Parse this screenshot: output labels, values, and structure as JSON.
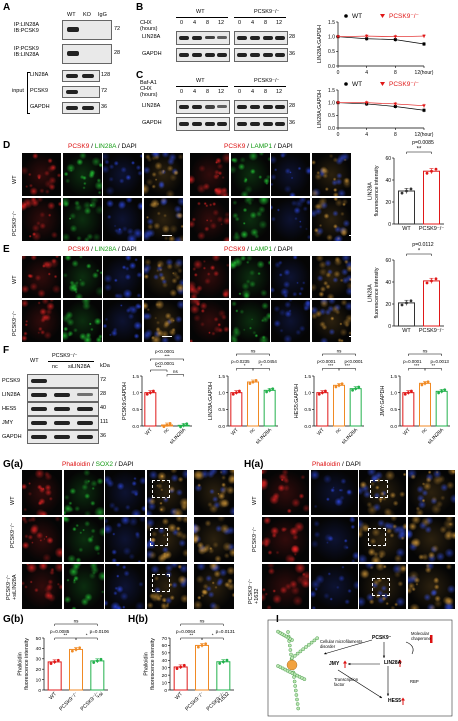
{
  "panels": {
    "A": "A",
    "B": "B",
    "C": "C",
    "D": "D",
    "E": "E",
    "F": "F",
    "Ga": "G(a)",
    "Ha": "H(a)",
    "Gb": "G(b)",
    "Hb": "H(b)",
    "I": "I"
  },
  "A": {
    "cols": [
      "WT",
      "KO",
      "IgG"
    ],
    "rows": [
      "IP:LIN28A\nIB:PCSK9",
      "IP:PCSK9\nIB:LIN28A",
      "LIN28A",
      "PCSK9",
      "GAPDH"
    ],
    "input_label": "input",
    "kda": [
      "72",
      "28",
      "128",
      "72",
      "36"
    ]
  },
  "B": {
    "cond_label": "CHX\n(hours)",
    "wt": "WT",
    "ko": "PCSK9⁻/⁻",
    "hours": [
      "0",
      "4",
      "8",
      "12",
      "0",
      "4",
      "8",
      "12"
    ],
    "rows": [
      "LIN28A",
      "GAPDH"
    ],
    "kda": [
      "28",
      "36"
    ]
  },
  "C": {
    "cond_label": "Baf-A1\nCHX\n(hours)",
    "wt": "WT",
    "ko": "PCSK9⁻/⁻",
    "hours": [
      "0",
      "4",
      "8",
      "12",
      "0",
      "4",
      "8",
      "12"
    ],
    "rows": [
      "LIN28A",
      "GAPDH"
    ],
    "kda": [
      "28",
      "36"
    ]
  },
  "D": {
    "left_title": {
      "a": "PCSK9",
      "b": " / ",
      "c": "LIN28A",
      "d": " / DAPI"
    },
    "right_title": {
      "a": "PCSK9",
      "b": " / ",
      "c": "LAMP1",
      "d": " / DAPI"
    },
    "rows": [
      "WT",
      "PCSK9⁻/⁻"
    ],
    "pval": "p=0.0085"
  },
  "E": {
    "left_title": {
      "a": "PCSK9",
      "b": " / ",
      "c": "LIN28A",
      "d": " / DAPI"
    },
    "right_title": {
      "a": "PCSK9",
      "b": " / ",
      "c": "LAMP1",
      "d": " / DAPI"
    },
    "rows": [
      "WT",
      "PCSK9⁻/⁻"
    ],
    "pval": "p=0.0112"
  },
  "F": {
    "header_ko": "PCSK9⁻/⁻",
    "header_cols": [
      "WT",
      "nc",
      "siLIN28A"
    ],
    "rows": [
      "PCSK9",
      "LIN28A",
      "HES5",
      "JMY",
      "GAPDH"
    ],
    "kda_title": "kDa",
    "kda": [
      "72",
      "28",
      "40",
      "111",
      "36"
    ]
  },
  "Ga": {
    "title": {
      "a": "Phalloidin",
      "b": " / ",
      "c": "SOX2",
      "d": " / DAPI"
    },
    "rows": [
      "WT",
      "PCSK9⁻/⁻",
      "PCSK9⁻/⁻\n+siLIN28A"
    ]
  },
  "Ha": {
    "title": {
      "a": "Phalloidin",
      "b": " / DAPI"
    },
    "rows": [
      "WT",
      "PCSK9⁻/⁻",
      "PCSK9⁻/⁻\n+1632"
    ]
  },
  "I": {
    "labels": {
      "disorder": "Cellular microfilaments\ndisorder",
      "pcsk9": "PCSK9⁻",
      "chaperone": "Molecular\nchaperone",
      "lin28a": "LIN28A",
      "jmy": "JMY",
      "rbp": "RBP",
      "tf": "Transcription\nfactor",
      "hes5": "HES5"
    }
  },
  "chart_data": [
    {
      "id": "B-line",
      "type": "line",
      "ylabel": "LIN28A:GAPDH",
      "xlabel": "(hour)",
      "x": [
        0,
        4,
        8,
        12
      ],
      "xticks": [
        "0",
        "4",
        "8",
        "12(hour)"
      ],
      "ylim": [
        0.0,
        1.5
      ],
      "yticks": [
        "0.0",
        "0.5",
        "1.0",
        "1.5"
      ],
      "legend": [
        "WT",
        "PCSK9⁻/⁻"
      ],
      "series": [
        {
          "name": "WT",
          "values": [
            1.0,
            0.93,
            0.9,
            0.75
          ],
          "color": "#000000"
        },
        {
          "name": "PCSK9⁻/⁻",
          "values": [
            1.0,
            1.02,
            1.0,
            1.02
          ],
          "color": "#e01818"
        }
      ]
    },
    {
      "id": "C-line",
      "type": "line",
      "ylabel": "LIN28A:GAPDH",
      "xlabel": "(hour)",
      "x": [
        0,
        4,
        8,
        12
      ],
      "xticks": [
        "0",
        "4",
        "8",
        "12(hour)"
      ],
      "ylim": [
        0.0,
        1.5
      ],
      "yticks": [
        "0.0",
        "0.5",
        "1.0",
        "1.5"
      ],
      "legend": [
        "WT",
        "PCSK9⁻/⁻"
      ],
      "series": [
        {
          "name": "WT",
          "values": [
            1.0,
            0.95,
            0.85,
            0.7
          ],
          "color": "#000000"
        },
        {
          "name": "PCSK9⁻/⁻",
          "values": [
            1.0,
            1.0,
            0.95,
            0.88
          ],
          "color": "#e01818"
        }
      ]
    },
    {
      "id": "D-bar",
      "type": "bar",
      "ylabel": "LIN28A\nfluorescence intensity",
      "categories": [
        "WT",
        "PCSK9⁻/⁻"
      ],
      "values": [
        30,
        48
      ],
      "ylim": [
        0,
        60
      ],
      "yticks": [
        "0",
        "20",
        "40",
        "60"
      ],
      "sig": "p=0.0085",
      "stars": "**"
    },
    {
      "id": "E-bar",
      "type": "bar",
      "ylabel": "LIN28A\nfluorescence intensity",
      "categories": [
        "WT",
        "PCSK9⁻/⁻"
      ],
      "values": [
        21,
        41
      ],
      "ylim": [
        0,
        60
      ],
      "yticks": [
        "0",
        "20",
        "40",
        "60"
      ],
      "sig": "p=0.0112",
      "stars": "*"
    },
    {
      "id": "F1",
      "type": "bar",
      "ylabel": "PCSK9:GAPDH",
      "categories": [
        "WT",
        "nc",
        "siLIN28A"
      ],
      "values": [
        1.0,
        0.03,
        0.02
      ],
      "ylim": [
        0,
        1.5
      ],
      "yticks": [
        "0.0",
        "0.5",
        "1.0",
        "1.5"
      ],
      "sigs": [
        "p<0.0001",
        "***",
        "p<0.0001",
        "***",
        "ns"
      ]
    },
    {
      "id": "F2",
      "type": "bar",
      "ylabel": "LIN28A:GAPDH",
      "categories": [
        "WT",
        "nc",
        "siLIN28A"
      ],
      "values": [
        1.0,
        1.32,
        1.07
      ],
      "ylim": [
        0,
        1.5
      ],
      "yticks": [
        "0.0",
        "0.5",
        "1.0",
        "1.5"
      ],
      "sigs": [
        "ns",
        "p=0.0235",
        "p=0.0454",
        "*",
        "*"
      ]
    },
    {
      "id": "F3",
      "type": "bar",
      "ylabel": "HES5:GAPDH",
      "categories": [
        "WT",
        "nc",
        "siLIN28A"
      ],
      "values": [
        1.0,
        1.22,
        1.12
      ],
      "ylim": [
        0,
        1.5
      ],
      "yticks": [
        "0.0",
        "0.5",
        "1.0",
        "1.5"
      ],
      "sigs": [
        "ns",
        "p<0.0001",
        "p<0.0001",
        "***",
        "***"
      ]
    },
    {
      "id": "F4",
      "type": "bar",
      "ylabel": "JMY:GAPDH",
      "categories": [
        "WT",
        "nc",
        "siLIN28A"
      ],
      "values": [
        1.0,
        1.28,
        1.04
      ],
      "ylim": [
        0,
        1.5
      ],
      "yticks": [
        "0.0",
        "0.5",
        "1.0",
        "1.5"
      ],
      "sigs": [
        "ns",
        "p=0.0001",
        "p=0.0013",
        "***",
        "**"
      ]
    },
    {
      "id": "Gb",
      "type": "bar",
      "ylabel": "Phalloidin\nfluorescence intensity",
      "categories": [
        "WT",
        "PCSK9⁻/⁻",
        "PCSK9⁻/⁻\n+si"
      ],
      "values": [
        27,
        39,
        28
      ],
      "ylim": [
        0,
        50
      ],
      "yticks": [
        "0",
        "10",
        "20",
        "30",
        "40",
        "50"
      ],
      "sigs": [
        "ns",
        "p=0.0085",
        "p=0.0106",
        "**",
        "*"
      ]
    },
    {
      "id": "Hb",
      "type": "bar",
      "ylabel": "Phalloidin\nfluorescence intensity",
      "categories": [
        "WT",
        "PCSK9⁻/⁻",
        "PCSK9⁻/⁻\n+1632"
      ],
      "values": [
        31,
        60,
        38
      ],
      "ylim": [
        0,
        70
      ],
      "yticks": [
        "0",
        "10",
        "20",
        "30",
        "40",
        "50",
        "60",
        "70"
      ],
      "sigs": [
        "ns",
        "p=0.0064",
        "p=0.0131",
        "**",
        "*"
      ]
    }
  ]
}
